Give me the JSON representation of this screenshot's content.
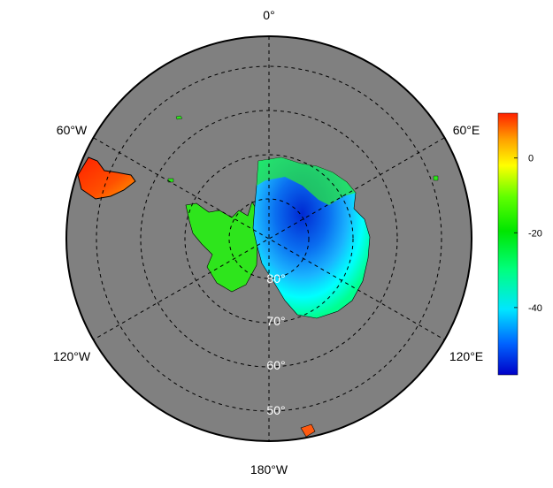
{
  "map": {
    "projection": "south-polar-stereographic",
    "ocean_color": "#808080",
    "grid_style": "dashed",
    "longitude_labels": [
      {
        "id": "lon-0",
        "text": "0°"
      },
      {
        "id": "lon-60e",
        "text": "60°E"
      },
      {
        "id": "lon-120e",
        "text": "120°E"
      },
      {
        "id": "lon-180w",
        "text": "180°W"
      },
      {
        "id": "lon-120w",
        "text": "120°W"
      },
      {
        "id": "lon-60w",
        "text": "60°W"
      }
    ],
    "latitude_labels": [
      {
        "id": "lat-80",
        "text": "80°"
      },
      {
        "id": "lat-70",
        "text": "70°"
      },
      {
        "id": "lat-60",
        "text": "60°"
      },
      {
        "id": "lat-50",
        "text": "50°"
      }
    ]
  },
  "colorbar": {
    "ticks": [
      "0",
      "-20",
      "-40"
    ],
    "tick_values": [
      0,
      -20,
      -40
    ],
    "range": [
      -58,
      12
    ],
    "colors": [
      "#0000c8",
      "#0064ff",
      "#00e6ff",
      "#00ff80",
      "#00e600",
      "#60ff00",
      "#ffff00",
      "#ffa000",
      "#ff2000"
    ]
  }
}
